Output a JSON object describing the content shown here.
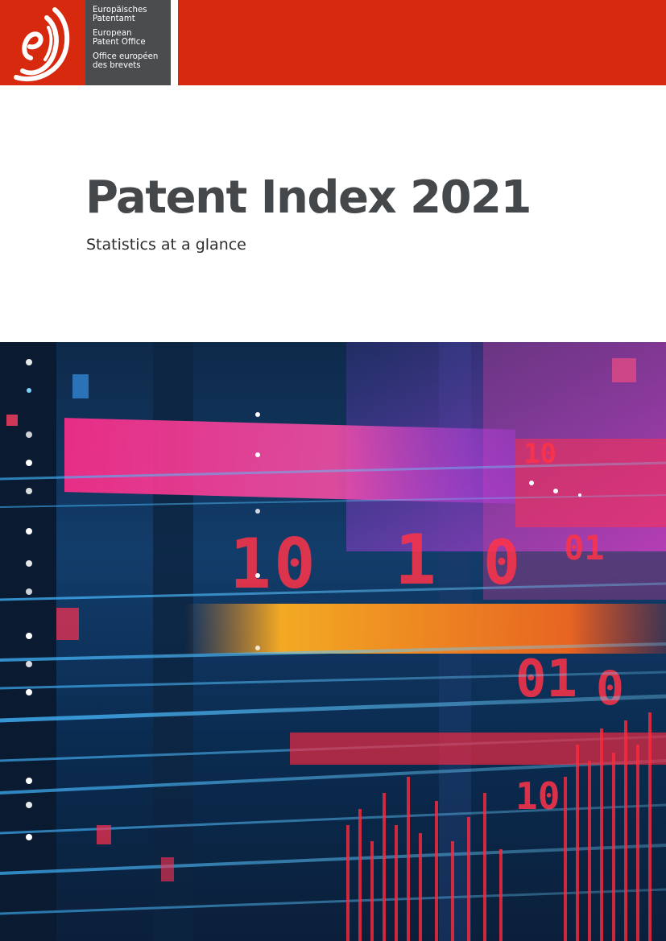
{
  "header": {
    "organization_names": [
      "Europäisches\nPatentamt",
      "European\nPatent Office",
      "Office européen\ndes brevets"
    ],
    "brand_color": "#d6290e",
    "org_block_color": "#4a4c4e",
    "logo_icon": "epo-logo-icon"
  },
  "document": {
    "title": "Patent Index 2021",
    "subtitle": "Statistics at a glance",
    "title_color": "#45484b"
  },
  "cover_image": {
    "icon": "digital-data-streaks-image"
  }
}
